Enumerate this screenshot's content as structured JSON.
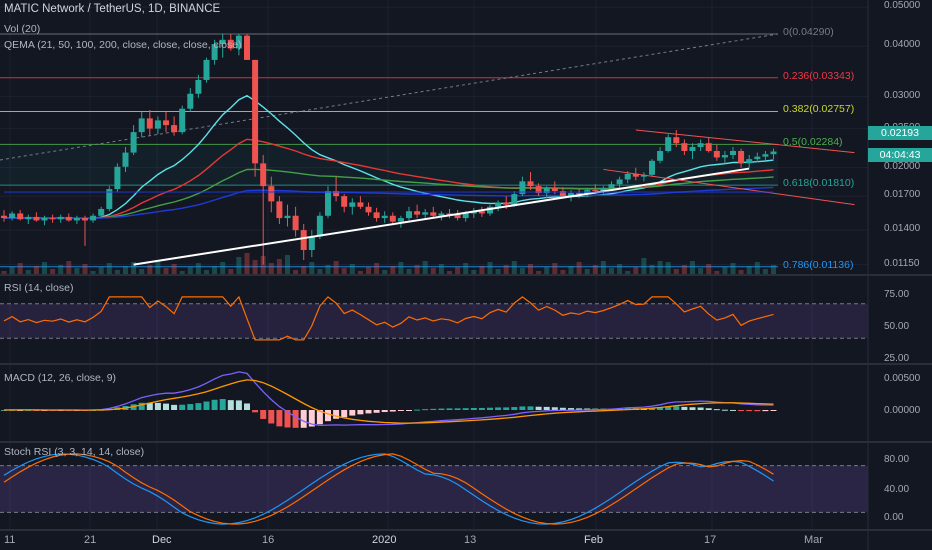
{
  "header": {
    "title": "MATIC Network / TetherUS, 1D, BINANCE",
    "vol": "Vol (20)",
    "qema": "QEMA (21, 50, 100, 200, close, close, close, close)"
  },
  "price_axis": [
    "0.05000",
    "0.04000",
    "0.03000",
    "0.02500",
    "0.02000",
    "0.01700",
    "0.01400",
    "0.01150"
  ],
  "last_price": "0.02193",
  "countdown": "04:04:43",
  "fib_levels": [
    {
      "label": "0(0.04290)",
      "color": "#787b86"
    },
    {
      "label": "0.236(0.03343)",
      "color": "#f23645"
    },
    {
      "label": "0.382(0.02757)",
      "color": "#c8d82c"
    },
    {
      "label": "0.5(0.02284)",
      "color": "#4caf50"
    },
    {
      "label": "0.618(0.01810)",
      "color": "#26a69a"
    },
    {
      "label": "0.786(0.01136)",
      "color": "#2196f3"
    }
  ],
  "panes": {
    "rsi": {
      "title": "RSI (14, close)",
      "axis": [
        "75.00",
        "50.00",
        "25.00"
      ]
    },
    "macd": {
      "title": "MACD (12, 26, close, 9)",
      "axis": [
        "0.00500",
        "0.00000"
      ]
    },
    "stoch": {
      "title": "Stoch RSI (3, 3, 14, 14, close)",
      "axis": [
        "80.00",
        "40.00",
        "0.00"
      ]
    }
  },
  "time_axis": [
    "11",
    "21",
    "Dec",
    "16",
    "2020",
    "13",
    "Feb",
    "17",
    "Mar"
  ],
  "colors": {
    "bg": "#131722",
    "up": "#26a69a",
    "down": "#ef5350",
    "rsi": "#ff6d00",
    "macd": "#7b61ff",
    "signal": "#ff9800",
    "stoch_k": "#2196f3",
    "stoch_d": "#ff6d00",
    "band": "#7e57c2"
  },
  "chart_data": {
    "type": "candlestick",
    "price_range": [
      0.0109,
      0.0515
    ],
    "log_scale": true,
    "trendline": {
      "from": [
        16,
        0.0115
      ],
      "to": [
        92,
        0.0199
      ]
    },
    "candles": [
      [
        0.0152,
        0.0157,
        0.0147,
        0.015
      ],
      [
        0.015,
        0.0156,
        0.0148,
        0.0154
      ],
      [
        0.0154,
        0.0157,
        0.0148,
        0.0149
      ],
      [
        0.0149,
        0.0153,
        0.0145,
        0.0151
      ],
      [
        0.0151,
        0.0155,
        0.0147,
        0.0148
      ],
      [
        0.0148,
        0.0152,
        0.0144,
        0.015
      ],
      [
        0.015,
        0.0153,
        0.0146,
        0.0149
      ],
      [
        0.0149,
        0.0153,
        0.0146,
        0.0151
      ],
      [
        0.0151,
        0.0154,
        0.0147,
        0.0148
      ],
      [
        0.0148,
        0.0152,
        0.0145,
        0.015
      ],
      [
        0.015,
        0.0152,
        0.0128,
        0.0148
      ],
      [
        0.0148,
        0.0154,
        0.0146,
        0.0152
      ],
      [
        0.0152,
        0.016,
        0.015,
        0.0158
      ],
      [
        0.0158,
        0.018,
        0.0156,
        0.0177
      ],
      [
        0.0177,
        0.0205,
        0.0174,
        0.0201
      ],
      [
        0.0201,
        0.0225,
        0.0195,
        0.0218
      ],
      [
        0.0218,
        0.0255,
        0.0215,
        0.0245
      ],
      [
        0.0245,
        0.0275,
        0.0238,
        0.0265
      ],
      [
        0.0265,
        0.0278,
        0.024,
        0.025
      ],
      [
        0.025,
        0.0268,
        0.0242,
        0.0262
      ],
      [
        0.0262,
        0.0275,
        0.0245,
        0.0255
      ],
      [
        0.0255,
        0.0268,
        0.024,
        0.0245
      ],
      [
        0.0245,
        0.0285,
        0.0242,
        0.028
      ],
      [
        0.028,
        0.0315,
        0.0275,
        0.0305
      ],
      [
        0.0305,
        0.034,
        0.0298,
        0.033
      ],
      [
        0.033,
        0.0375,
        0.0325,
        0.037
      ],
      [
        0.037,
        0.0415,
        0.036,
        0.0405
      ],
      [
        0.0405,
        0.043,
        0.0375,
        0.0415
      ],
      [
        0.0415,
        0.0429,
        0.039,
        0.0395
      ],
      [
        0.0395,
        0.0429,
        0.038,
        0.0425
      ],
      [
        0.0425,
        0.0429,
        0.037,
        0.037
      ],
      [
        0.037,
        0.037,
        0.019,
        0.0205
      ],
      [
        0.0205,
        0.0215,
        0.0115,
        0.018
      ],
      [
        0.018,
        0.019,
        0.0155,
        0.0165
      ],
      [
        0.0165,
        0.017,
        0.0145,
        0.015
      ],
      [
        0.015,
        0.0162,
        0.0143,
        0.0152
      ],
      [
        0.0152,
        0.016,
        0.0135,
        0.014
      ],
      [
        0.014,
        0.0145,
        0.0118,
        0.0125
      ],
      [
        0.0125,
        0.014,
        0.012,
        0.0135
      ],
      [
        0.0135,
        0.0155,
        0.0133,
        0.0152
      ],
      [
        0.0152,
        0.018,
        0.015,
        0.0175
      ],
      [
        0.0175,
        0.019,
        0.0165,
        0.017
      ],
      [
        0.017,
        0.0172,
        0.0155,
        0.016
      ],
      [
        0.016,
        0.0168,
        0.0153,
        0.0164
      ],
      [
        0.0164,
        0.017,
        0.0158,
        0.016
      ],
      [
        0.016,
        0.0164,
        0.0152,
        0.0155
      ],
      [
        0.0155,
        0.0159,
        0.0147,
        0.015
      ],
      [
        0.015,
        0.0156,
        0.0146,
        0.0152
      ],
      [
        0.0152,
        0.0155,
        0.0144,
        0.0147
      ],
      [
        0.0147,
        0.0152,
        0.0142,
        0.015
      ],
      [
        0.015,
        0.016,
        0.0148,
        0.0156
      ],
      [
        0.0156,
        0.0162,
        0.015,
        0.0153
      ],
      [
        0.0153,
        0.0158,
        0.0149,
        0.0155
      ],
      [
        0.0155,
        0.016,
        0.015,
        0.0152
      ],
      [
        0.0152,
        0.0156,
        0.0148,
        0.0154
      ],
      [
        0.0154,
        0.0158,
        0.015,
        0.0153
      ],
      [
        0.0153,
        0.0157,
        0.0148,
        0.015
      ],
      [
        0.015,
        0.0156,
        0.0147,
        0.0154
      ],
      [
        0.0154,
        0.0159,
        0.015,
        0.0156
      ],
      [
        0.0156,
        0.016,
        0.0151,
        0.0154
      ],
      [
        0.0154,
        0.0162,
        0.0152,
        0.016
      ],
      [
        0.016,
        0.0166,
        0.0156,
        0.0164
      ],
      [
        0.0164,
        0.017,
        0.0158,
        0.0162
      ],
      [
        0.0162,
        0.0175,
        0.016,
        0.0172
      ],
      [
        0.0172,
        0.019,
        0.017,
        0.0185
      ],
      [
        0.0185,
        0.0195,
        0.0176,
        0.018
      ],
      [
        0.018,
        0.0183,
        0.017,
        0.0173
      ],
      [
        0.0173,
        0.018,
        0.0168,
        0.0178
      ],
      [
        0.0178,
        0.0185,
        0.0172,
        0.0175
      ],
      [
        0.0175,
        0.0179,
        0.0168,
        0.017
      ],
      [
        0.017,
        0.0176,
        0.0165,
        0.0173
      ],
      [
        0.0173,
        0.0177,
        0.0168,
        0.0172
      ],
      [
        0.0172,
        0.0178,
        0.0169,
        0.0176
      ],
      [
        0.0176,
        0.0182,
        0.0172,
        0.0175
      ],
      [
        0.0175,
        0.018,
        0.0171,
        0.0178
      ],
      [
        0.0178,
        0.0185,
        0.0175,
        0.0182
      ],
      [
        0.0182,
        0.019,
        0.0178,
        0.0187
      ],
      [
        0.0187,
        0.0196,
        0.0183,
        0.0193
      ],
      [
        0.0193,
        0.02,
        0.0186,
        0.019
      ],
      [
        0.019,
        0.0195,
        0.0185,
        0.0192
      ],
      [
        0.0192,
        0.021,
        0.019,
        0.0208
      ],
      [
        0.0208,
        0.0225,
        0.0205,
        0.022
      ],
      [
        0.022,
        0.0242,
        0.0218,
        0.0238
      ],
      [
        0.0238,
        0.0248,
        0.0225,
        0.023
      ],
      [
        0.023,
        0.0235,
        0.0215,
        0.022
      ],
      [
        0.022,
        0.023,
        0.021,
        0.0225
      ],
      [
        0.0225,
        0.0235,
        0.022,
        0.023
      ],
      [
        0.023,
        0.0238,
        0.0218,
        0.022
      ],
      [
        0.022,
        0.0228,
        0.0208,
        0.0212
      ],
      [
        0.0212,
        0.022,
        0.0205,
        0.0215
      ],
      [
        0.0215,
        0.0225,
        0.021,
        0.022
      ],
      [
        0.022,
        0.0223,
        0.02,
        0.0205
      ],
      [
        0.0205,
        0.0215,
        0.02,
        0.021
      ],
      [
        0.021,
        0.0218,
        0.0206,
        0.0213
      ],
      [
        0.0213,
        0.022,
        0.0208,
        0.0216
      ],
      [
        0.0216,
        0.0223,
        0.021,
        0.02193
      ]
    ]
  }
}
